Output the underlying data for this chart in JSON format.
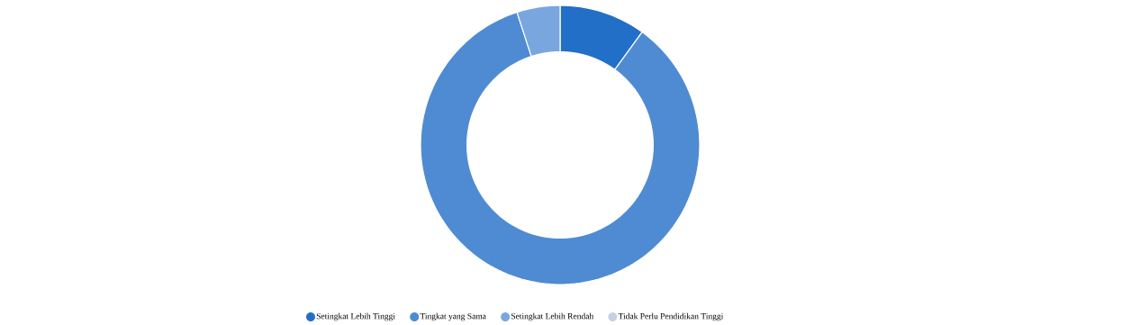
{
  "chart_data": {
    "type": "donut",
    "categories": [
      "Setingkat Lebih Tinggi",
      "Tingkat yang Sama",
      "Setingkat Lebih Rendah",
      "Tidak Perlu Pendidikan Tinggi"
    ],
    "values": [
      10,
      85,
      5,
      0
    ],
    "colors": [
      "#226fc8",
      "#4f8bd3",
      "#7aa6df",
      "#c6d2e2"
    ],
    "legend": "bottom"
  }
}
